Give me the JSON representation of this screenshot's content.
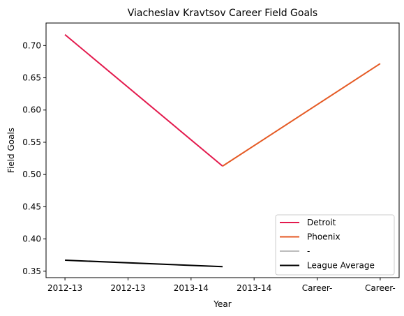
{
  "chart_data": {
    "type": "line",
    "title": "Viacheslav Kravtsov Career Field Goals",
    "xlabel": "Year",
    "ylabel": "Field Goals",
    "categories": [
      "2012-13",
      "2012-13",
      "2013-14",
      "2013-14",
      "Career-",
      "Career-"
    ],
    "ylim": [
      0.34,
      0.735
    ],
    "yticks": [
      0.35,
      0.4,
      0.45,
      0.5,
      0.55,
      0.6,
      0.65,
      0.7
    ],
    "grid": false,
    "legend_position": "lower right",
    "series": [
      {
        "name": "Detroit",
        "color": "#e31a4d",
        "points": [
          [
            0,
            0.717
          ],
          [
            2.5,
            0.513
          ]
        ]
      },
      {
        "name": "Phoenix",
        "color": "#e55a24",
        "points": [
          [
            2.5,
            0.513
          ],
          [
            5,
            0.672
          ]
        ]
      },
      {
        "name": "-",
        "color": "#bdbdbd",
        "points": []
      },
      {
        "name": "League Average",
        "color": "#000000",
        "points": [
          [
            0,
            0.367
          ],
          [
            2.5,
            0.357
          ]
        ]
      }
    ]
  }
}
